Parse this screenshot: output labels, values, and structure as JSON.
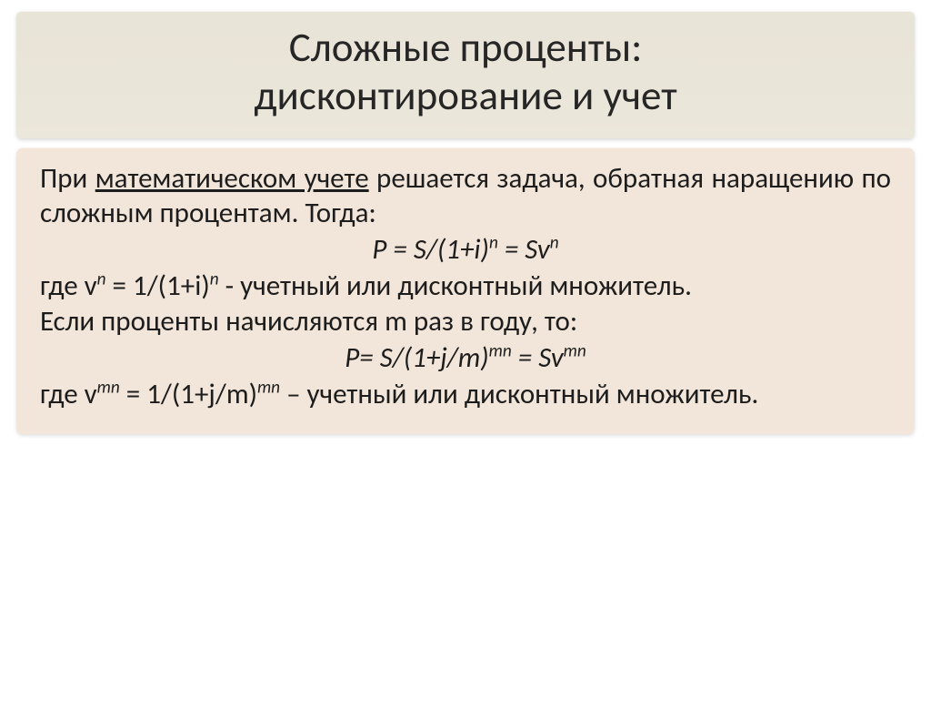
{
  "title": {
    "line1": "Сложные проценты:",
    "line2": "дисконтирование и учет"
  },
  "body": {
    "p1_a": "При ",
    "p1_u": "математическом учете",
    "p1_b": " решается задача, обратная наращению по сложным процентам. Тогда:",
    "f1_a": "P = S/(1+i)",
    "f1_sup": "n",
    "f1_b": " = Sv",
    "f1_sup2": "n",
    "p2_a": "где v",
    "p2_sup": "n",
    "p2_b": " = 1/(1+i)",
    "p2_sup2": "n",
    "p2_c": " - учетный или дисконтный множитель.",
    "p3": "Если проценты начисляются m раз в году, то:",
    "f2_a": "P= S/(1+j/m)",
    "f2_sup": "mn",
    "f2_b": " = Sv",
    "f2_sup2": "mn",
    "p4_a": "где v",
    "p4_sup": "mn",
    "p4_b": " = 1/(1+j/m)",
    "p4_sup2": "mn",
    "p4_c": " – учетный или дисконтный множитель."
  },
  "style": {
    "title_bg": "#eae5d9",
    "body_bg": "#f2e6da",
    "title_fontsize": 45,
    "body_fontsize": 31,
    "text_color": "#1d1d1d"
  }
}
